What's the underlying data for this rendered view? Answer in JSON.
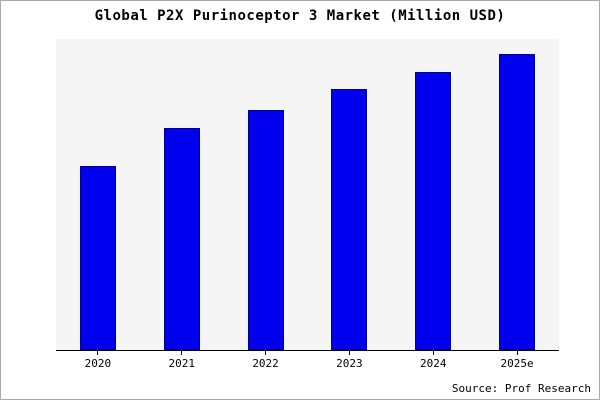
{
  "title": "Global P2X Purinoceptor 3 Market (Million USD)",
  "source": "Source: Prof Research",
  "colors": {
    "bar_fill": "#0000EE",
    "bar_border": "#00008B",
    "plot_background": "#f5f5f5",
    "axis": "#000000"
  },
  "chart_data": {
    "type": "bar",
    "title": "Global P2X Purinoceptor 3 Market (Million USD)",
    "categories": [
      "2020",
      "2021",
      "2022",
      "2023",
      "2024",
      "2025e"
    ],
    "values": [
      62,
      75,
      81,
      88,
      94,
      100
    ],
    "xlabel": "",
    "ylabel": "",
    "ylim": [
      0,
      105
    ],
    "y_axis_ticks_visible": false,
    "grid": false,
    "legend_position": "none",
    "annotation": "Source: Prof Research",
    "note": "No numeric y-axis labels shown; values estimated on a relative 0-100 scale from bar heights"
  }
}
